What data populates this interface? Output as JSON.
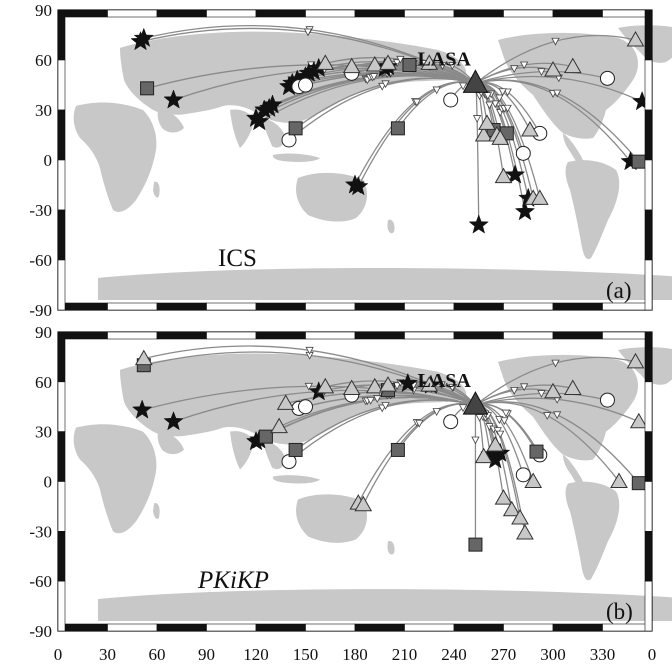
{
  "figure": {
    "station_label": "LASA",
    "x_ticks": [
      "0",
      "30",
      "60",
      "90",
      "120",
      "150",
      "180",
      "210",
      "240",
      "270",
      "300",
      "330",
      "0"
    ],
    "y_ticks": [
      "90",
      "60",
      "30",
      "0",
      "-30",
      "-60",
      "-90"
    ]
  },
  "chart_data": [
    {
      "type": "scatter",
      "panel_label": "(a)",
      "map_label": "ICS",
      "xlim": [
        0,
        360
      ],
      "ylim": [
        -90,
        90
      ],
      "station": {
        "name": "LASA",
        "lon": 253,
        "lat": 46
      },
      "series": [
        {
          "marker": "star",
          "points": [
            [
              52,
              73
            ],
            [
              50,
              71
            ],
            [
              70,
              36
            ],
            [
              120,
              25
            ],
            [
              122,
              23
            ],
            [
              125,
              30
            ],
            [
              128,
              31
            ],
            [
              130,
              33
            ],
            [
              140,
              44
            ],
            [
              142,
              46
            ],
            [
              145,
              48
            ],
            [
              150,
              50
            ],
            [
              152,
              52
            ],
            [
              155,
              53
            ],
            [
              158,
              55
            ],
            [
              180,
              -15
            ],
            [
              182,
              -16
            ],
            [
              198,
              55
            ],
            [
              200,
              56
            ],
            [
              255,
              -39
            ],
            [
              277,
              -9
            ],
            [
              283,
              -31
            ],
            [
              285,
              -23
            ],
            [
              347,
              -1
            ],
            [
              354,
              35
            ]
          ]
        },
        {
          "marker": "circle",
          "points": [
            [
              140,
              12
            ],
            [
              146,
              44
            ],
            [
              150,
              45
            ],
            [
              178,
              52
            ],
            [
              238,
              36
            ],
            [
              282,
              4
            ],
            [
              292,
              16
            ],
            [
              333,
              49
            ]
          ]
        },
        {
          "marker": "square",
          "points": [
            [
              54,
              43
            ],
            [
              144,
              19
            ],
            [
              206,
              19
            ],
            [
              213,
              57
            ],
            [
              264,
              18
            ],
            [
              272,
              16
            ],
            [
              352,
              -1
            ]
          ]
        },
        {
          "marker": "triangle",
          "points": [
            [
              162,
              58
            ],
            [
              178,
              56
            ],
            [
              192,
              57
            ],
            [
              200,
              58
            ],
            [
              225,
              58
            ],
            [
              258,
              15
            ],
            [
              260,
              22
            ],
            [
              266,
              15
            ],
            [
              268,
              13
            ],
            [
              270,
              -10
            ],
            [
              286,
              18
            ],
            [
              288,
              -23
            ],
            [
              292,
              -23
            ],
            [
              300,
              54
            ],
            [
              312,
              56
            ],
            [
              350,
              72
            ]
          ]
        }
      ]
    },
    {
      "type": "scatter",
      "panel_label": "(b)",
      "map_label": "PKiKP",
      "xlim": [
        0,
        360
      ],
      "ylim": [
        -90,
        90
      ],
      "station": {
        "name": "LASA",
        "lon": 253,
        "lat": 46
      },
      "series": [
        {
          "marker": "star",
          "points": [
            [
              51,
              43
            ],
            [
              70,
              36
            ],
            [
              120,
              24
            ],
            [
              122,
              25
            ],
            [
              158,
              54
            ],
            [
              212,
              59
            ],
            [
              226,
              58
            ],
            [
              262,
              16
            ],
            [
              265,
              13
            ],
            [
              268,
              17
            ]
          ]
        },
        {
          "marker": "circle",
          "points": [
            [
              140,
              12
            ],
            [
              146,
              44
            ],
            [
              150,
              45
            ],
            [
              178,
              52
            ],
            [
              238,
              36
            ],
            [
              282,
              4
            ],
            [
              292,
              16
            ],
            [
              333,
              49
            ]
          ]
        },
        {
          "marker": "square",
          "points": [
            [
              52,
              70
            ],
            [
              126,
              27
            ],
            [
              144,
              19
            ],
            [
              200,
              55
            ],
            [
              206,
              19
            ],
            [
              253,
              -38
            ],
            [
              290,
              18
            ],
            [
              352,
              -1
            ]
          ]
        },
        {
          "marker": "triangle",
          "points": [
            [
              52,
              74
            ],
            [
              134,
              33
            ],
            [
              138,
              47
            ],
            [
              162,
              57
            ],
            [
              178,
              56
            ],
            [
              192,
              57
            ],
            [
              200,
              58
            ],
            [
              225,
              58
            ],
            [
              258,
              15
            ],
            [
              265,
              22
            ],
            [
              270,
              -10
            ],
            [
              275,
              -17
            ],
            [
              280,
              -22
            ],
            [
              283,
              -31
            ],
            [
              288,
              0
            ],
            [
              300,
              54
            ],
            [
              312,
              56
            ],
            [
              340,
              0
            ],
            [
              350,
              72
            ],
            [
              352,
              36
            ],
            [
              182,
              -13
            ],
            [
              185,
              -14
            ]
          ]
        }
      ]
    }
  ]
}
